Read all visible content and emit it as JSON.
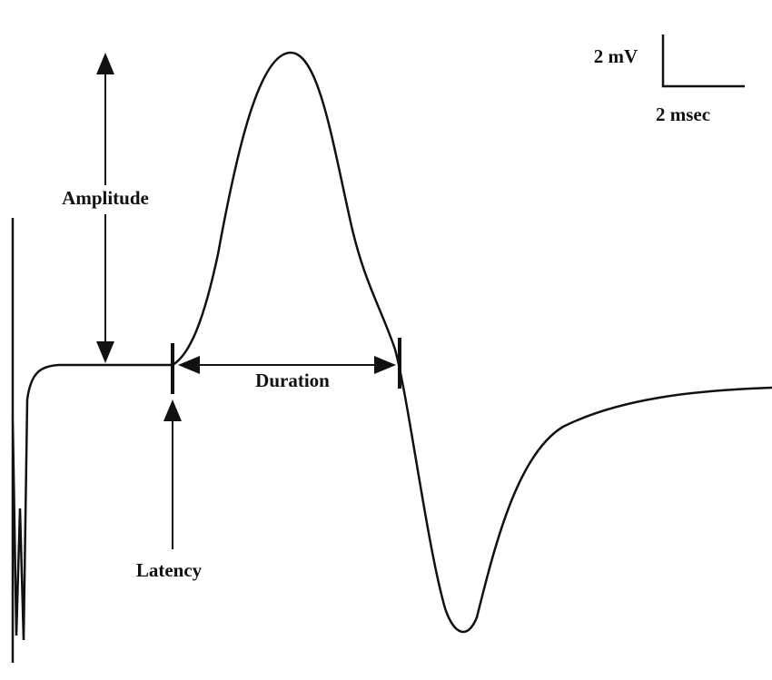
{
  "labels": {
    "amplitude": "Amplitude",
    "duration": "Duration",
    "latency": "Latency"
  },
  "scale_bar": {
    "voltage": "2 mV",
    "time": "2 msec"
  }
}
